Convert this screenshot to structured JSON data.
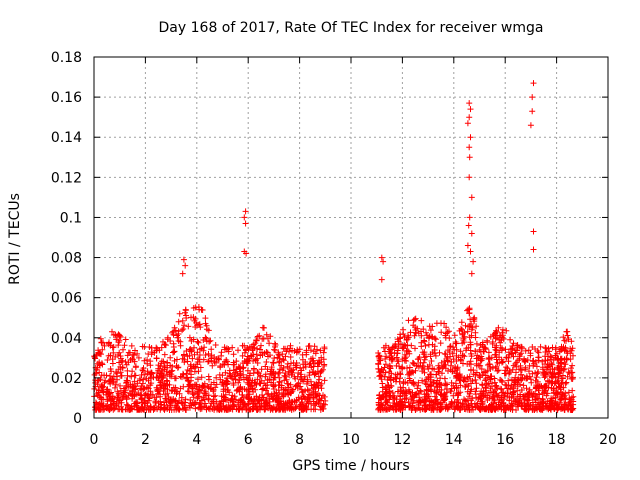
{
  "chart_data": {
    "type": "scatter",
    "title": "Day 168 of 2017, Rate Of TEC Index for receiver wmga",
    "xlabel": "GPS time / hours",
    "ylabel": "ROTI / TECUs",
    "xlim": [
      0,
      20
    ],
    "ylim": [
      0,
      0.18
    ],
    "grid": true,
    "marker": "+",
    "marker_color": "#ff0000",
    "x_ticks": [
      0,
      2,
      4,
      6,
      8,
      10,
      12,
      14,
      16,
      18,
      20
    ],
    "y_ticks": [
      0,
      0.02,
      0.04,
      0.06,
      0.08,
      0.1,
      0.12,
      0.14,
      0.16,
      0.18
    ],
    "x_tick_labels": [
      "0",
      "2",
      "4",
      "6",
      "8",
      "10",
      "12",
      "14",
      "16",
      "18",
      "20"
    ],
    "y_tick_labels": [
      "0",
      "0.02",
      "0.04",
      "0.06",
      "0.08",
      "0.1",
      "0.12",
      "0.14",
      "0.16",
      "0.18"
    ],
    "data_gap_hours": [
      9.0,
      11.0
    ],
    "outliers": [
      {
        "x": 5.9,
        "y": 0.103
      },
      {
        "x": 5.85,
        "y": 0.1
      },
      {
        "x": 5.9,
        "y": 0.097
      },
      {
        "x": 5.85,
        "y": 0.083
      },
      {
        "x": 5.92,
        "y": 0.082
      },
      {
        "x": 3.5,
        "y": 0.079
      },
      {
        "x": 3.55,
        "y": 0.076
      },
      {
        "x": 3.45,
        "y": 0.072
      },
      {
        "x": 11.2,
        "y": 0.08
      },
      {
        "x": 11.25,
        "y": 0.078
      },
      {
        "x": 11.2,
        "y": 0.069
      },
      {
        "x": 14.6,
        "y": 0.157
      },
      {
        "x": 14.65,
        "y": 0.154
      },
      {
        "x": 14.6,
        "y": 0.15
      },
      {
        "x": 14.55,
        "y": 0.147
      },
      {
        "x": 14.65,
        "y": 0.14
      },
      {
        "x": 14.6,
        "y": 0.135
      },
      {
        "x": 14.62,
        "y": 0.13
      },
      {
        "x": 14.6,
        "y": 0.12
      },
      {
        "x": 14.7,
        "y": 0.11
      },
      {
        "x": 14.62,
        "y": 0.1
      },
      {
        "x": 14.58,
        "y": 0.096
      },
      {
        "x": 14.7,
        "y": 0.092
      },
      {
        "x": 14.55,
        "y": 0.086
      },
      {
        "x": 14.65,
        "y": 0.083
      },
      {
        "x": 14.75,
        "y": 0.078
      },
      {
        "x": 14.7,
        "y": 0.072
      },
      {
        "x": 17.1,
        "y": 0.167
      },
      {
        "x": 17.05,
        "y": 0.16
      },
      {
        "x": 17.05,
        "y": 0.153
      },
      {
        "x": 17.0,
        "y": 0.146
      },
      {
        "x": 17.1,
        "y": 0.093
      },
      {
        "x": 17.1,
        "y": 0.084
      }
    ]
  }
}
